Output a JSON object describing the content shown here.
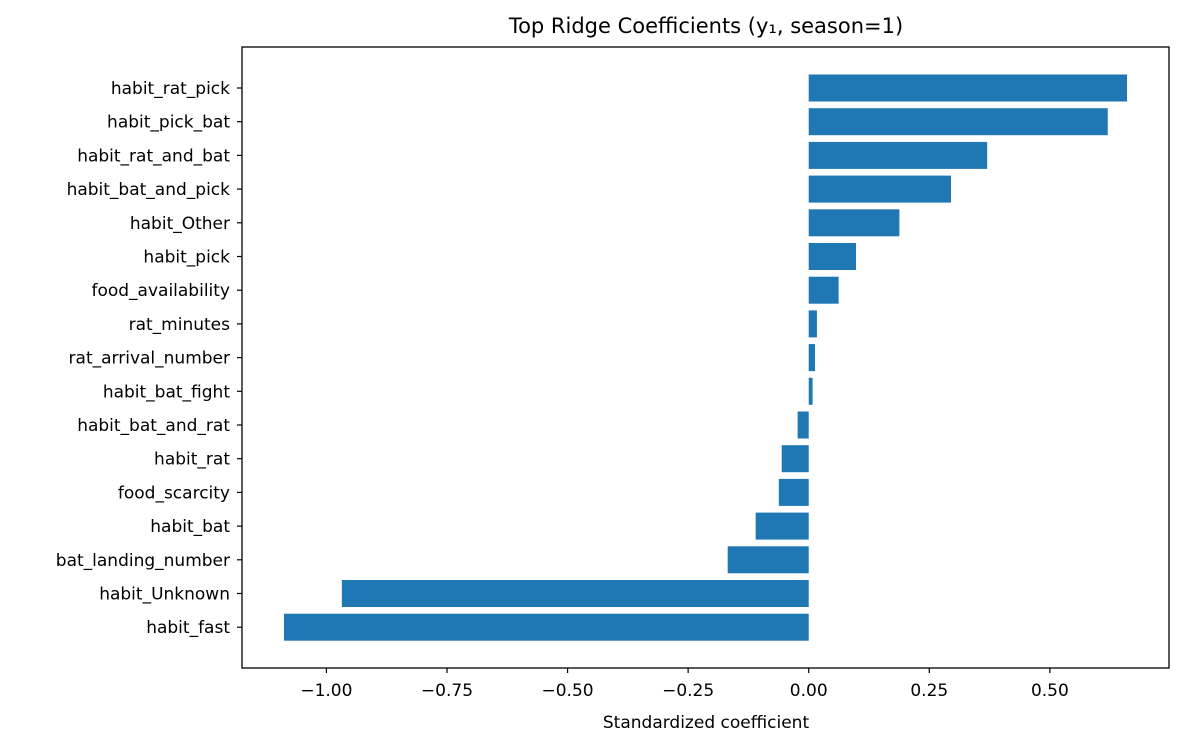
{
  "chart_data": {
    "type": "bar",
    "orientation": "horizontal",
    "title": "Top Ridge Coefficients (y₁, season=1)",
    "xlabel": "Standardized coefficient",
    "ylabel": "",
    "categories": [
      "habit_rat_pick",
      "habit_pick_bat",
      "habit_rat_and_bat",
      "habit_bat_and_pick",
      "habit_Other",
      "habit_pick",
      "food_availability",
      "rat_minutes",
      "rat_arrival_number",
      "habit_bat_fight",
      "habit_bat_and_rat",
      "habit_rat",
      "food_scarcity",
      "habit_bat",
      "bat_landing_number",
      "habit_Unknown",
      "habit_fast"
    ],
    "values": [
      0.66,
      0.62,
      0.37,
      0.295,
      0.188,
      0.098,
      0.062,
      0.017,
      0.013,
      0.008,
      -0.023,
      -0.056,
      -0.062,
      -0.11,
      -0.168,
      -0.968,
      -1.088
    ],
    "xlim": [
      -1.175,
      0.747
    ],
    "xticks": [
      -1.0,
      -0.75,
      -0.5,
      -0.25,
      0.0,
      0.25,
      0.5
    ],
    "xtick_labels": [
      "−1.00",
      "−0.75",
      "−0.50",
      "−0.25",
      "0.00",
      "0.25",
      "0.50"
    ],
    "bar_color": "#1f77b4",
    "grid": false,
    "legend": "none"
  }
}
